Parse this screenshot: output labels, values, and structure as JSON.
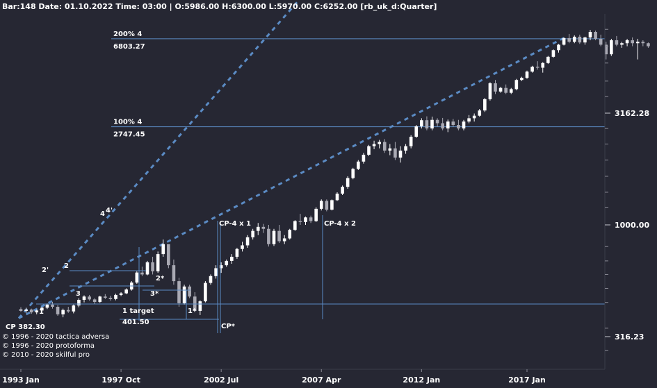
{
  "header": "Bar:148 Date: 01.10.2022 Time: 03:00 | O:5986.00 H:6300.00 L:5970.00 C:6252.00  [rb_uk_d:Quarter]",
  "copyright": [
    "© 1996 - 2020 tactica adversa",
    "© 1996 - 2020 protoforma",
    "© 2010 - 2020 skilful pro"
  ],
  "colors": {
    "background": "#262733",
    "bull": "#ffffff",
    "bear": "#a9a9b3",
    "line": "#5b8bc4",
    "trend": "#5b8bc4",
    "text": "#ffffff"
  },
  "chart_data": {
    "type": "candlestick",
    "title": "rb_uk_d:Quarter",
    "scale": "log",
    "ylim": [
      250,
      11000
    ],
    "xlim": [
      1992.8,
      2024.6
    ],
    "x_ticks": [
      {
        "label": "1993 Jan",
        "x": 1993.0
      },
      {
        "label": "1997 Oct",
        "x": 1997.75
      },
      {
        "label": "2002 Jul",
        "x": 2002.5
      },
      {
        "label": "2007 Apr",
        "x": 2007.25
      },
      {
        "label": "2012 Jan",
        "x": 2012.0
      },
      {
        "label": "2017 Jan",
        "x": 2017.0
      }
    ],
    "y_labels": [
      {
        "label": "3162.28",
        "value": 3162.28
      },
      {
        "label": "1000.00",
        "value": 1000.0
      },
      {
        "label": "316.23",
        "value": 316.23
      }
    ],
    "y_minor_ticks": [
      275,
      345,
      450,
      520,
      600,
      690,
      800,
      1200,
      1400,
      1650,
      1950,
      2300,
      2700,
      3750,
      4400,
      5300,
      6300,
      7500,
      8800,
      10300
    ],
    "levels": [
      {
        "pct": "200%  4",
        "value_label": "6803.27",
        "value": 6803.27
      },
      {
        "pct": "100%  4",
        "value_label": "2747.45",
        "value": 2747.45
      }
    ],
    "candles_quarterly": {
      "start": "1993 Q1",
      "ohlc": [
        [
          420,
          428,
          408,
          412
        ],
        [
          412,
          426,
          404,
          418
        ],
        [
          418,
          422,
          400,
          406
        ],
        [
          406,
          418,
          398,
          414
        ],
        [
          414,
          430,
          410,
          426
        ],
        [
          426,
          445,
          420,
          440
        ],
        [
          440,
          452,
          422,
          430
        ],
        [
          430,
          438,
          392,
          398
        ],
        [
          398,
          422,
          386,
          416
        ],
        [
          416,
          430,
          404,
          410
        ],
        [
          410,
          440,
          402,
          436
        ],
        [
          436,
          470,
          428,
          462
        ],
        [
          462,
          484,
          450,
          478
        ],
        [
          478,
          486,
          458,
          464
        ],
        [
          464,
          470,
          444,
          452
        ],
        [
          452,
          482,
          448,
          478
        ],
        [
          478,
          490,
          466,
          472
        ],
        [
          472,
          482,
          458,
          466
        ],
        [
          466,
          492,
          460,
          486
        ],
        [
          486,
          500,
          480,
          494
        ],
        [
          494,
          520,
          490,
          514
        ],
        [
          514,
          560,
          508,
          552
        ],
        [
          552,
          620,
          545,
          612
        ],
        [
          612,
          650,
          590,
          600
        ],
        [
          600,
          690,
          595,
          680
        ],
        [
          680,
          720,
          600,
          620
        ],
        [
          620,
          760,
          610,
          740
        ],
        [
          740,
          860,
          720,
          820
        ],
        [
          820,
          810,
          640,
          660
        ],
        [
          660,
          700,
          540,
          560
        ],
        [
          560,
          580,
          430,
          446
        ],
        [
          446,
          540,
          440,
          530
        ],
        [
          530,
          540,
          470,
          478
        ],
        [
          478,
          500,
          406,
          412
        ],
        [
          412,
          460,
          395,
          455
        ],
        [
          455,
          560,
          450,
          550
        ],
        [
          550,
          600,
          540,
          590
        ],
        [
          590,
          660,
          575,
          640
        ],
        [
          640,
          680,
          610,
          660
        ],
        [
          660,
          700,
          650,
          690
        ],
        [
          690,
          740,
          670,
          720
        ],
        [
          720,
          790,
          705,
          780
        ],
        [
          780,
          840,
          760,
          810
        ],
        [
          810,
          900,
          790,
          880
        ],
        [
          880,
          960,
          860,
          940
        ],
        [
          940,
          1020,
          900,
          980
        ],
        [
          980,
          1010,
          920,
          960
        ],
        [
          960,
          1000,
          800,
          820
        ],
        [
          820,
          960,
          805,
          940
        ],
        [
          940,
          1000,
          830,
          845
        ],
        [
          845,
          900,
          820,
          870
        ],
        [
          870,
          960,
          860,
          950
        ],
        [
          950,
          1050,
          940,
          1040
        ],
        [
          1040,
          1120,
          1000,
          1030
        ],
        [
          1030,
          1090,
          1000,
          1080
        ],
        [
          1080,
          1100,
          1020,
          1040
        ],
        [
          1040,
          1200,
          1030,
          1180
        ],
        [
          1180,
          1300,
          1160,
          1280
        ],
        [
          1280,
          1300,
          1150,
          1170
        ],
        [
          1170,
          1300,
          1160,
          1290
        ],
        [
          1290,
          1400,
          1280,
          1380
        ],
        [
          1380,
          1500,
          1360,
          1480
        ],
        [
          1480,
          1650,
          1450,
          1620
        ],
        [
          1620,
          1800,
          1600,
          1780
        ],
        [
          1780,
          1950,
          1760,
          1920
        ],
        [
          1920,
          2100,
          1880,
          2060
        ],
        [
          2060,
          2280,
          2030,
          2250
        ],
        [
          2250,
          2380,
          2180,
          2300
        ],
        [
          2300,
          2400,
          2200,
          2350
        ],
        [
          2350,
          2420,
          2100,
          2150
        ],
        [
          2150,
          2300,
          2050,
          2200
        ],
        [
          2200,
          2350,
          1950,
          2000
        ],
        [
          2000,
          2250,
          1900,
          2150
        ],
        [
          2150,
          2300,
          2080,
          2250
        ],
        [
          2250,
          2520,
          2200,
          2480
        ],
        [
          2480,
          2800,
          2450,
          2760
        ],
        [
          2760,
          3000,
          2700,
          2940
        ],
        [
          2940,
          3060,
          2650,
          2700
        ],
        [
          2700,
          3050,
          2650,
          2950
        ],
        [
          2950,
          3000,
          2750,
          2850
        ],
        [
          2850,
          3010,
          2650,
          2700
        ],
        [
          2700,
          2960,
          2600,
          2900
        ],
        [
          2900,
          2980,
          2750,
          2800
        ],
        [
          2800,
          2950,
          2650,
          2700
        ],
        [
          2700,
          2950,
          2650,
          2900
        ],
        [
          2900,
          3100,
          2850,
          3000
        ],
        [
          3000,
          3150,
          2900,
          3080
        ],
        [
          3080,
          3300,
          3050,
          3250
        ],
        [
          3250,
          3700,
          3200,
          3650
        ],
        [
          3650,
          4350,
          3600,
          4300
        ],
        [
          4300,
          4450,
          3850,
          3950
        ],
        [
          3950,
          4150,
          3900,
          4100
        ],
        [
          4100,
          4250,
          3850,
          3900
        ],
        [
          3900,
          4100,
          3850,
          4050
        ],
        [
          4050,
          4500,
          4000,
          4450
        ],
        [
          4450,
          4600,
          4400,
          4550
        ],
        [
          4550,
          4900,
          4500,
          4850
        ],
        [
          4850,
          5150,
          4800,
          5100
        ],
        [
          5100,
          5400,
          4950,
          5050
        ],
        [
          5050,
          5350,
          4800,
          5300
        ],
        [
          5300,
          5700,
          5250,
          5650
        ],
        [
          5650,
          6100,
          5600,
          6050
        ],
        [
          6050,
          6450,
          5900,
          6400
        ],
        [
          6400,
          6900,
          6350,
          6850
        ],
        [
          6850,
          7150,
          6500,
          6600
        ],
        [
          6600,
          7050,
          6500,
          6950
        ],
        [
          6950,
          7100,
          6450,
          6550
        ],
        [
          6550,
          6950,
          6400,
          6900
        ],
        [
          6900,
          7450,
          6700,
          7300
        ],
        [
          7300,
          7400,
          6700,
          6800
        ],
        [
          6800,
          7100,
          6300,
          6400
        ],
        [
          6400,
          6600,
          5500,
          5800
        ],
        [
          5800,
          6800,
          5700,
          6700
        ],
        [
          6700,
          7000,
          6300,
          6400
        ],
        [
          6400,
          6600,
          6200,
          6500
        ],
        [
          6500,
          6800,
          6300,
          6700
        ],
        [
          6700,
          6900,
          6300,
          6500
        ],
        [
          6500,
          6800,
          5500,
          6600
        ],
        [
          6600,
          6700,
          6300,
          6500
        ],
        [
          6500,
          6550,
          6200,
          6300
        ]
      ]
    },
    "annotations": [
      {
        "label": "CP 382.30"
      },
      {
        "label": "1"
      },
      {
        "label": "1 target"
      },
      {
        "label": "401.50"
      },
      {
        "label": "1*"
      },
      {
        "label": "CP*"
      },
      {
        "label": "CP-4 x 1"
      },
      {
        "label": "CP-4 x 2"
      },
      {
        "label": "2"
      },
      {
        "label": "2'"
      },
      {
        "label": "2*"
      },
      {
        "label": "3"
      },
      {
        "label": "3*"
      },
      {
        "label": "4"
      },
      {
        "label": "4'"
      }
    ]
  }
}
